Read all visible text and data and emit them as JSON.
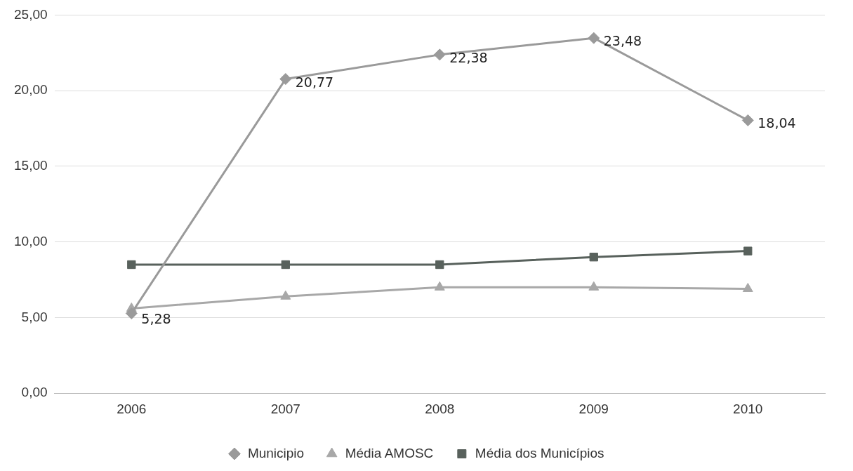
{
  "chart_data": {
    "type": "line",
    "categories": [
      "2006",
      "2007",
      "2008",
      "2009",
      "2010"
    ],
    "ylim": [
      0,
      25
    ],
    "yticks": [
      {
        "value": 0,
        "label": "0,00"
      },
      {
        "value": 5,
        "label": "5,00"
      },
      {
        "value": 10,
        "label": "10,00"
      },
      {
        "value": 15,
        "label": "15,00"
      },
      {
        "value": 20,
        "label": "20,00"
      },
      {
        "value": 25,
        "label": "25,00"
      }
    ],
    "grid": "y",
    "legend": "bottom",
    "series": [
      {
        "name": "Municipio",
        "color": "#9a9a9a",
        "marker": "diamond",
        "values": [
          5.28,
          20.77,
          22.38,
          23.48,
          18.04
        ],
        "value_labels": [
          "5,28",
          "20,77",
          "22,38",
          "23,48",
          "18,04"
        ]
      },
      {
        "name": "Média AMOSC",
        "color": "#a8a8a8",
        "marker": "triangle",
        "values": [
          5.6,
          6.4,
          7.0,
          7.0,
          6.9
        ]
      },
      {
        "name": "Média dos Municípios",
        "color": "#58615c",
        "marker": "square",
        "values": [
          8.5,
          8.5,
          8.5,
          9.0,
          9.4
        ]
      }
    ]
  }
}
